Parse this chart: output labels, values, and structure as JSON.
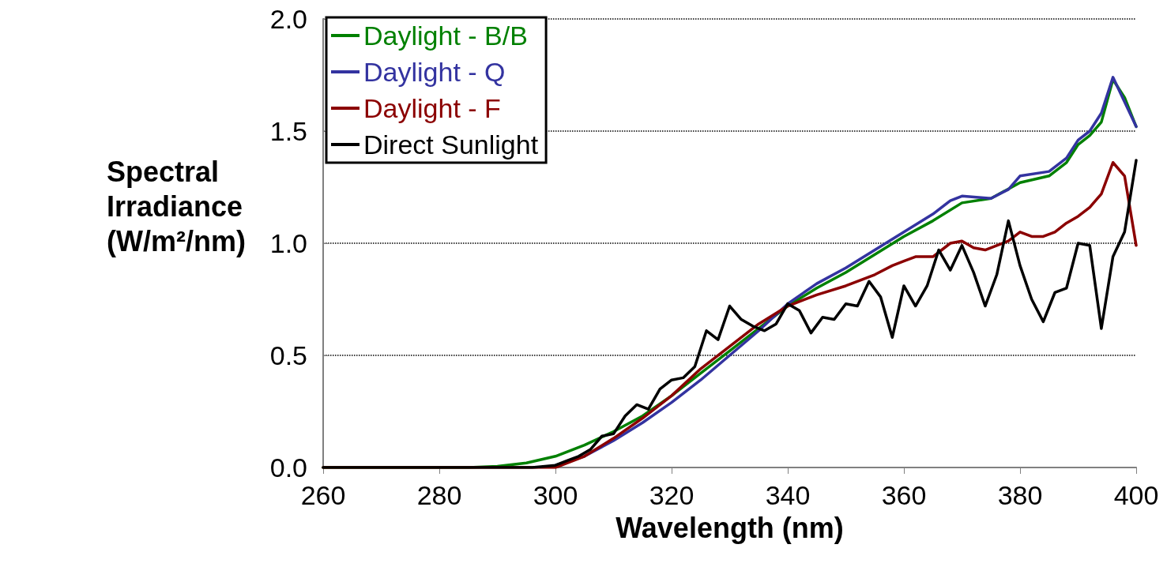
{
  "chart_data": {
    "type": "line",
    "xlabel": "Wavelength (nm)",
    "ylabel": "Spectral Irradiance (W/m²/nm)",
    "xlim": [
      260,
      400
    ],
    "xticks": [
      260,
      280,
      300,
      320,
      340,
      360,
      380,
      400
    ],
    "ylim": [
      0,
      2
    ],
    "yticks": [
      {
        "value": 0,
        "label": "0.0"
      },
      {
        "value": 0.5,
        "label": "0.5"
      },
      {
        "value": 1,
        "label": "1.0"
      },
      {
        "value": 1.5,
        "label": "1.5"
      },
      {
        "value": 2,
        "label": "2.0"
      }
    ],
    "grid": "y",
    "legend": "top left",
    "marker": "none",
    "line_style": "solid",
    "series": [
      {
        "name": "Daylight - B/B",
        "color": "#008000",
        "x": [
          260,
          280,
          285,
          290,
          295,
          300,
          305,
          310,
          315,
          320,
          325,
          330,
          335,
          340,
          345,
          350,
          355,
          360,
          365,
          370,
          375,
          380,
          385,
          388,
          390,
          392,
          394,
          396,
          398,
          400
        ],
        "values": [
          0,
          0,
          0,
          0.005,
          0.02,
          0.05,
          0.1,
          0.16,
          0.23,
          0.32,
          0.42,
          0.52,
          0.62,
          0.72,
          0.8,
          0.87,
          0.95,
          1.03,
          1.1,
          1.18,
          1.2,
          1.27,
          1.3,
          1.36,
          1.44,
          1.48,
          1.54,
          1.73,
          1.65,
          1.52
        ]
      },
      {
        "name": "Daylight - Q",
        "color": "#3333a0",
        "x": [
          300,
          305,
          310,
          315,
          320,
          325,
          330,
          335,
          340,
          345,
          350,
          355,
          360,
          365,
          368,
          370,
          375,
          378,
          380,
          385,
          388,
          390,
          392,
          394,
          396,
          398,
          400
        ],
        "values": [
          0.01,
          0.05,
          0.12,
          0.2,
          0.29,
          0.39,
          0.5,
          0.61,
          0.73,
          0.82,
          0.89,
          0.97,
          1.05,
          1.13,
          1.19,
          1.21,
          1.2,
          1.24,
          1.3,
          1.32,
          1.38,
          1.46,
          1.5,
          1.58,
          1.74,
          1.63,
          1.52
        ]
      },
      {
        "name": "Daylight - F",
        "color": "#8b0000",
        "x": [
          260,
          280,
          300,
          302,
          305,
          310,
          315,
          320,
          325,
          330,
          335,
          340,
          345,
          350,
          355,
          358,
          360,
          362,
          365,
          368,
          370,
          372,
          374,
          376,
          378,
          380,
          382,
          384,
          386,
          388,
          390,
          392,
          394,
          396,
          398,
          400
        ],
        "values": [
          0,
          0,
          0,
          0.02,
          0.05,
          0.13,
          0.22,
          0.32,
          0.44,
          0.54,
          0.64,
          0.72,
          0.77,
          0.81,
          0.86,
          0.9,
          0.92,
          0.94,
          0.94,
          1.0,
          1.01,
          0.98,
          0.97,
          0.99,
          1.01,
          1.05,
          1.03,
          1.03,
          1.05,
          1.09,
          1.12,
          1.16,
          1.22,
          1.36,
          1.3,
          0.99
        ]
      },
      {
        "name": "Direct Sunlight",
        "color": "#000000",
        "x": [
          260,
          280,
          296,
          300,
          302,
          304,
          306,
          308,
          310,
          312,
          314,
          316,
          318,
          320,
          322,
          324,
          326,
          328,
          330,
          332,
          334,
          336,
          338,
          340,
          342,
          344,
          346,
          348,
          350,
          352,
          354,
          356,
          358,
          360,
          362,
          364,
          366,
          368,
          370,
          372,
          374,
          376,
          378,
          380,
          382,
          384,
          386,
          388,
          390,
          392,
          394,
          396,
          398,
          400
        ],
        "values": [
          0,
          0,
          0,
          0.01,
          0.03,
          0.05,
          0.08,
          0.14,
          0.15,
          0.23,
          0.28,
          0.26,
          0.35,
          0.39,
          0.4,
          0.45,
          0.61,
          0.57,
          0.72,
          0.66,
          0.63,
          0.61,
          0.64,
          0.73,
          0.7,
          0.6,
          0.67,
          0.66,
          0.73,
          0.72,
          0.83,
          0.76,
          0.58,
          0.81,
          0.72,
          0.81,
          0.97,
          0.88,
          0.99,
          0.87,
          0.72,
          0.86,
          1.1,
          0.9,
          0.75,
          0.65,
          0.78,
          0.8,
          1.0,
          0.99,
          0.62,
          0.94,
          1.05,
          1.37
        ]
      }
    ]
  }
}
